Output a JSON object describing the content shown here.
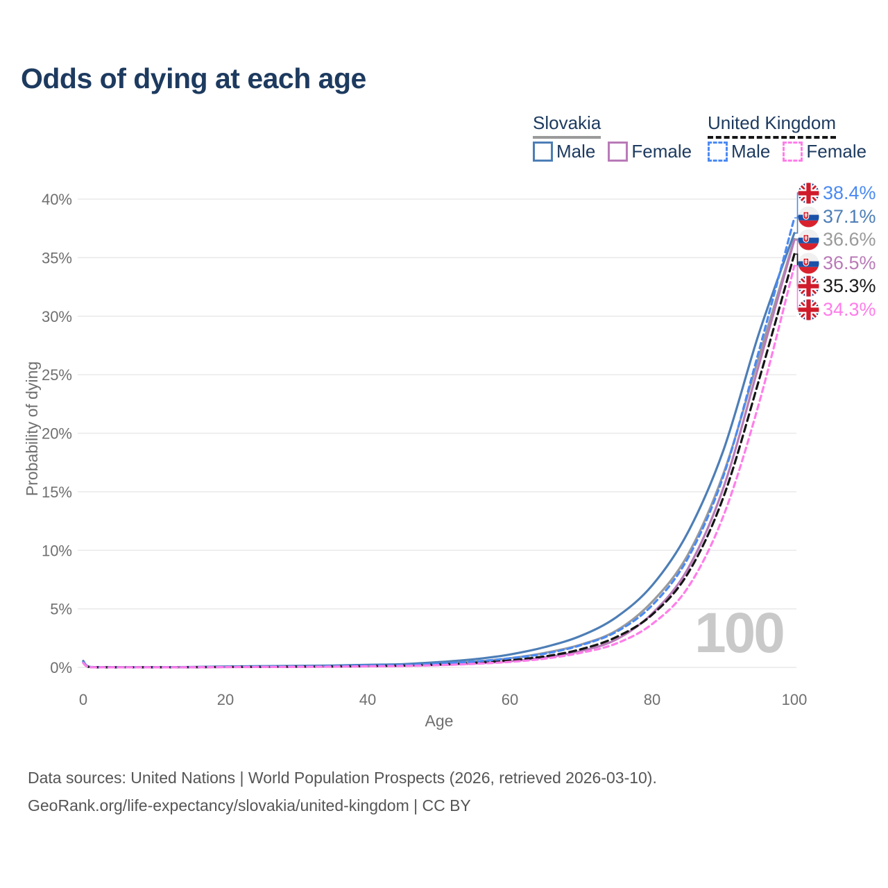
{
  "title": "Odds of dying at each age",
  "watermark_age": "100",
  "axes": {
    "y_label": "Probability of dying",
    "x_label": "Age"
  },
  "legend": {
    "groups": [
      {
        "label": "Slovakia",
        "line_style": "solid",
        "color": "#9a9a9a",
        "items": [
          {
            "label": "Male",
            "color": "#4d7eb6",
            "line_style": "solid"
          },
          {
            "label": "Female",
            "color": "#b97ab8",
            "line_style": "solid"
          }
        ]
      },
      {
        "label": "United Kingdom",
        "line_style": "dashed",
        "color": "#151515",
        "items": [
          {
            "label": "Male",
            "color": "#4b8af2",
            "line_style": "dashed"
          },
          {
            "label": "Female",
            "color": "#ff7de9",
            "line_style": "dashed"
          }
        ]
      }
    ]
  },
  "end_labels": [
    {
      "value": "38.4%",
      "flag": "uk",
      "color": "#4b8af2",
      "series_id": "uk_male"
    },
    {
      "value": "37.1%",
      "flag": "slovakia",
      "color": "#4d7eb6",
      "series_id": "sk_male"
    },
    {
      "value": "36.6%",
      "flag": "slovakia",
      "color": "#9a9a9a",
      "series_id": "sk_total"
    },
    {
      "value": "36.5%",
      "flag": "slovakia",
      "color": "#b97ab8",
      "series_id": "sk_female"
    },
    {
      "value": "35.3%",
      "flag": "uk",
      "color": "#1a1a1a",
      "series_id": "uk_total"
    },
    {
      "value": "34.3%",
      "flag": "uk",
      "color": "#ff7de9",
      "series_id": "uk_female"
    }
  ],
  "footer": {
    "line1": "Data sources: United Nations | World Population Prospects (2026, retrieved 2026-03-10).",
    "line2": "GeoRank.org/life-expectancy/slovakia/united-kingdom | CC BY"
  },
  "colors": {
    "title_text": "#1d3a5f",
    "legend_text": "#1d3a5f",
    "axis_text": "#6f6f6f",
    "grid": "#e9e9e9",
    "footer_text": "#555555",
    "watermark": "#c9c9c9"
  },
  "chart_data": {
    "type": "line",
    "title": "Odds of dying at each age",
    "xlabel": "Age",
    "ylabel": "Probability of dying",
    "xlim": [
      0,
      100
    ],
    "ylim_percent": [
      0,
      40
    ],
    "x_ticks": [
      0,
      20,
      40,
      60,
      80,
      100
    ],
    "y_ticks_percent": [
      0,
      5,
      10,
      15,
      20,
      25,
      30,
      35,
      40
    ],
    "grid": "horizontal",
    "legend_position": "top-right",
    "ages": [
      0,
      1,
      5,
      10,
      15,
      20,
      25,
      30,
      35,
      40,
      45,
      50,
      55,
      60,
      65,
      70,
      75,
      80,
      85,
      90,
      95,
      100
    ],
    "series": [
      {
        "id": "sk_total",
        "name": "Slovakia",
        "color": "#9a9a9a",
        "line_style": "solid",
        "end_value_percent": 36.6,
        "values_percent": [
          0.5,
          0.03,
          0.01,
          0.012,
          0.02,
          0.05,
          0.07,
          0.085,
          0.105,
          0.15,
          0.2,
          0.33,
          0.5,
          0.78,
          1.25,
          1.95,
          3.15,
          5.6,
          9.6,
          16.5,
          26.5,
          36.6
        ]
      },
      {
        "id": "sk_male",
        "name": "Slovakia Male",
        "color": "#4d7eb6",
        "line_style": "solid",
        "end_value_percent": 37.1,
        "values_percent": [
          0.55,
          0.035,
          0.012,
          0.015,
          0.03,
          0.075,
          0.105,
          0.125,
          0.155,
          0.22,
          0.28,
          0.45,
          0.7,
          1.1,
          1.75,
          2.7,
          4.3,
          7.0,
          11.5,
          18.5,
          28.5,
          37.1
        ]
      },
      {
        "id": "sk_female",
        "name": "Slovakia Female",
        "color": "#b97ab8",
        "line_style": "solid",
        "end_value_percent": 36.5,
        "values_percent": [
          0.45,
          0.025,
          0.008,
          0.009,
          0.015,
          0.028,
          0.038,
          0.05,
          0.065,
          0.095,
          0.13,
          0.21,
          0.33,
          0.52,
          0.85,
          1.4,
          2.4,
          4.6,
          8.4,
          15.3,
          25.8,
          36.5
        ]
      },
      {
        "id": "uk_total",
        "name": "United Kingdom",
        "color": "#151515",
        "line_style": "dashed",
        "end_value_percent": 35.3,
        "values_percent": [
          0.4,
          0.02,
          0.008,
          0.009,
          0.015,
          0.035,
          0.05,
          0.065,
          0.085,
          0.12,
          0.16,
          0.25,
          0.4,
          0.62,
          0.95,
          1.55,
          2.6,
          4.5,
          8.0,
          14.5,
          24.5,
          35.3
        ]
      },
      {
        "id": "uk_male",
        "name": "United Kingdom Male",
        "color": "#4b8af2",
        "line_style": "dashed",
        "end_value_percent": 38.4,
        "values_percent": [
          0.45,
          0.025,
          0.01,
          0.012,
          0.025,
          0.048,
          0.065,
          0.085,
          0.11,
          0.155,
          0.2,
          0.32,
          0.5,
          0.78,
          1.18,
          1.9,
          3.05,
          5.3,
          9.3,
          16.3,
          27.0,
          38.4
        ]
      },
      {
        "id": "uk_female",
        "name": "United Kingdom Female",
        "color": "#ff7de9",
        "line_style": "dashed",
        "end_value_percent": 34.3,
        "values_percent": [
          0.38,
          0.018,
          0.007,
          0.008,
          0.012,
          0.024,
          0.034,
          0.045,
          0.062,
          0.09,
          0.12,
          0.19,
          0.3,
          0.47,
          0.75,
          1.25,
          2.05,
          3.7,
          6.8,
          12.9,
          22.5,
          34.3
        ]
      }
    ]
  }
}
